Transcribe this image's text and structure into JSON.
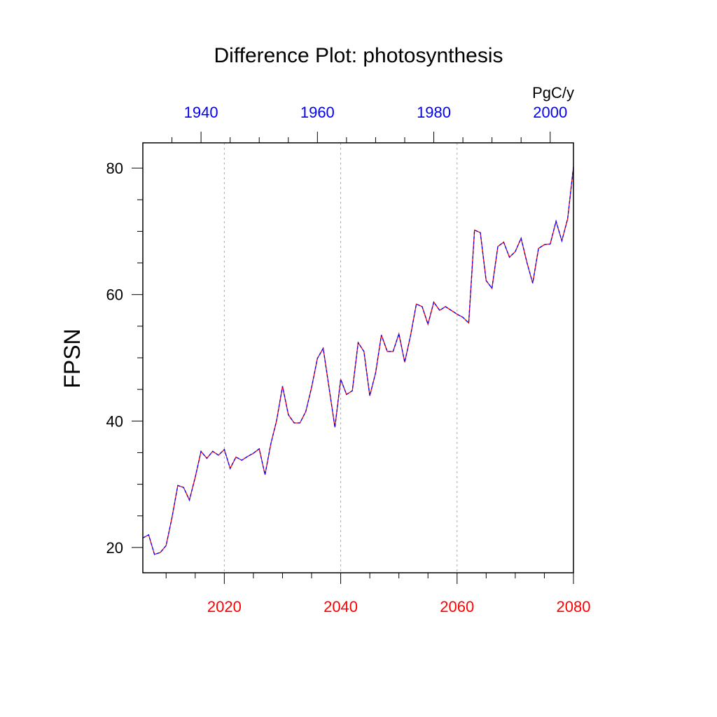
{
  "chart_data": {
    "type": "line",
    "title": "Difference Plot: photosynthesis",
    "ylabel": "FPSN",
    "units": "PgC/y",
    "xlim": [
      2006,
      2080
    ],
    "ylim": [
      16,
      84
    ],
    "yticks": [
      20,
      40,
      60,
      80
    ],
    "xticks_bottom": [
      2020,
      2040,
      2060,
      2080
    ],
    "xticks_top": [
      {
        "label": "1940",
        "at": 2016
      },
      {
        "label": "1960",
        "at": 2036
      },
      {
        "label": "1980",
        "at": 2056
      },
      {
        "label": "2000",
        "at": 2076
      }
    ],
    "grid": "vertical dotted at bottom major ticks",
    "colors": {
      "bottom_axis": "#ff0000",
      "top_axis": "#0000ff",
      "line_a": "#ff0000",
      "line_b": "#0000ff"
    },
    "series": [
      {
        "x": [
          2006,
          2007,
          2008,
          2009,
          2010,
          2011,
          2012,
          2013,
          2014,
          2015,
          2016,
          2017,
          2018,
          2019,
          2020,
          2021,
          2022,
          2023,
          2024,
          2025,
          2026,
          2027,
          2028,
          2029,
          2030,
          2031,
          2032,
          2033,
          2034,
          2035,
          2036,
          2037,
          2038,
          2039,
          2040,
          2041,
          2042,
          2043,
          2044,
          2045,
          2046,
          2047,
          2048,
          2049,
          2050,
          2051,
          2052,
          2053,
          2054,
          2055,
          2056,
          2057,
          2058,
          2059,
          2060,
          2061,
          2062,
          2063,
          2064,
          2065,
          2066,
          2067,
          2068,
          2069,
          2070,
          2071,
          2072,
          2073,
          2074,
          2075,
          2076,
          2077,
          2078,
          2079,
          2080
        ],
        "values": [
          21.5,
          22.0,
          18.9,
          19.2,
          20.3,
          24.7,
          29.8,
          29.5,
          27.5,
          31.1,
          35.2,
          34.1,
          35.2,
          34.6,
          35.5,
          32.5,
          34.3,
          33.8,
          34.4,
          34.9,
          35.6,
          31.5,
          36.4,
          40.1,
          45.5,
          41.0,
          39.7,
          39.7,
          41.5,
          45.3,
          49.9,
          51.5,
          45.3,
          39.0,
          46.6,
          44.2,
          44.8,
          52.4,
          51.0,
          44.0,
          47.6,
          53.6,
          51.0,
          51.0,
          53.8,
          49.3,
          53.5,
          58.5,
          58.1,
          55.3,
          58.8,
          57.5,
          58.1,
          57.5,
          56.9,
          56.4,
          55.5,
          70.2,
          69.8,
          62.2,
          61.0,
          67.6,
          68.3,
          65.9,
          66.8,
          68.9,
          65.1,
          61.8,
          67.3,
          67.9,
          68.0,
          71.6,
          68.5,
          72.0,
          80.2
        ]
      }
    ]
  }
}
